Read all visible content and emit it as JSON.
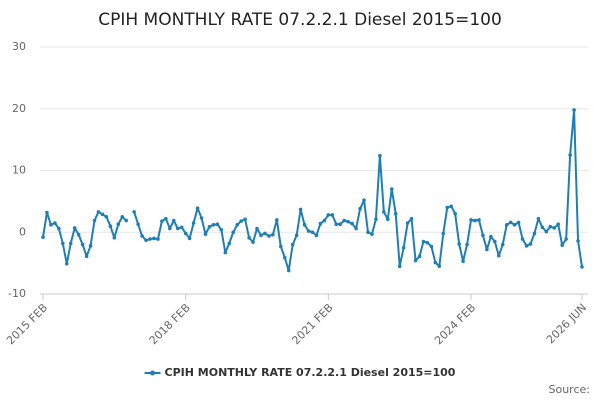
{
  "chart_data": {
    "type": "line",
    "title": "CPIH MONTHLY RATE 07.2.2.1 Diesel 2015=100",
    "categories": [
      "2015 FEB",
      null,
      null,
      null,
      null,
      null,
      null,
      null,
      null,
      null,
      null,
      null,
      null,
      null,
      null,
      null,
      null,
      null,
      null,
      null,
      null,
      null,
      null,
      null,
      null,
      null,
      null,
      null,
      null,
      null,
      null,
      null,
      null,
      null,
      null,
      null,
      "2018 FEB",
      null,
      null,
      null,
      null,
      null,
      null,
      null,
      null,
      null,
      null,
      null,
      null,
      null,
      null,
      null,
      null,
      null,
      null,
      null,
      null,
      null,
      null,
      null,
      null,
      null,
      null,
      null,
      null,
      null,
      null,
      null,
      null,
      null,
      null,
      null,
      "2021 FEB",
      null,
      null,
      null,
      null,
      null,
      null,
      null,
      null,
      null,
      null,
      null,
      null,
      null,
      null,
      null,
      null,
      null,
      null,
      null,
      null,
      null,
      null,
      null,
      null,
      null,
      null,
      null,
      null,
      null,
      null,
      null,
      null,
      null,
      null,
      null,
      "2024 FEB",
      null,
      null,
      null,
      null,
      null,
      null,
      null,
      null,
      null,
      null,
      null,
      null,
      null,
      null,
      null,
      null,
      null,
      null,
      null,
      null,
      null,
      null,
      null,
      null,
      null,
      null,
      null,
      "2026 JUN"
    ],
    "series": [
      {
        "name": "CPIH MONTHLY RATE 07.2.2.1 Diesel 2015=100",
        "color": "#1f7fb4",
        "values": [
          -0.8,
          3.2,
          1.2,
          1.5,
          0.6,
          -1.8,
          -5.1,
          -1.8,
          0.7,
          -0.4,
          -2.0,
          -3.9,
          -2.2,
          1.9,
          3.3,
          2.9,
          2.5,
          1.0,
          -0.9,
          1.3,
          2.5,
          1.9,
          null,
          3.3,
          1.3,
          -0.6,
          -1.3,
          -1.1,
          -1.0,
          -1.1,
          1.8,
          2.2,
          0.6,
          1.9,
          0.6,
          0.8,
          -0.2,
          -1.0,
          1.5,
          3.9,
          2.3,
          -0.3,
          0.9,
          1.2,
          1.3,
          0.4,
          -3.3,
          -1.8,
          0,
          1.2,
          1.8,
          2.1,
          -0.9,
          -1.6,
          0.6,
          -0.5,
          -0.2,
          -0.6,
          -0.4,
          2.0,
          -2.3,
          -4.1,
          -6.2,
          -2.0,
          -0.5,
          3.7,
          1.2,
          0.2,
          0.0,
          -0.5,
          1.4,
          1.9,
          2.8,
          2.8,
          1.3,
          1.3,
          1.9,
          1.7,
          1.4,
          0.6,
          3.8,
          5.2,
          0.0,
          -0.3,
          2.1,
          12.4,
          3.3,
          2.1,
          7.0,
          3.0,
          -5.5,
          -2.5,
          1.5,
          2.2,
          -4.6,
          -3.9,
          -1.5,
          -1.7,
          -2.3,
          -4.9,
          -5.5,
          -0.2,
          4.0,
          4.2,
          3.0,
          -1.9,
          -4.7,
          -2.0,
          2.0,
          1.9,
          2.0,
          -0.5,
          -2.8,
          -0.7,
          -1.5,
          -3.8,
          -2.0,
          1.2,
          1.6,
          1.2,
          1.6,
          -1.1,
          -2.2,
          -1.9,
          -0.2,
          2.2,
          0.8,
          0.1,
          0.9,
          0.7,
          1.3,
          -2.1,
          -1.1,
          12.5,
          19.8,
          -1.4,
          -5.6
        ]
      }
    ],
    "ylim": [
      -10,
      30
    ],
    "yticks": [
      -10,
      0,
      10,
      20,
      30
    ],
    "grid": true,
    "source": "Source:"
  }
}
